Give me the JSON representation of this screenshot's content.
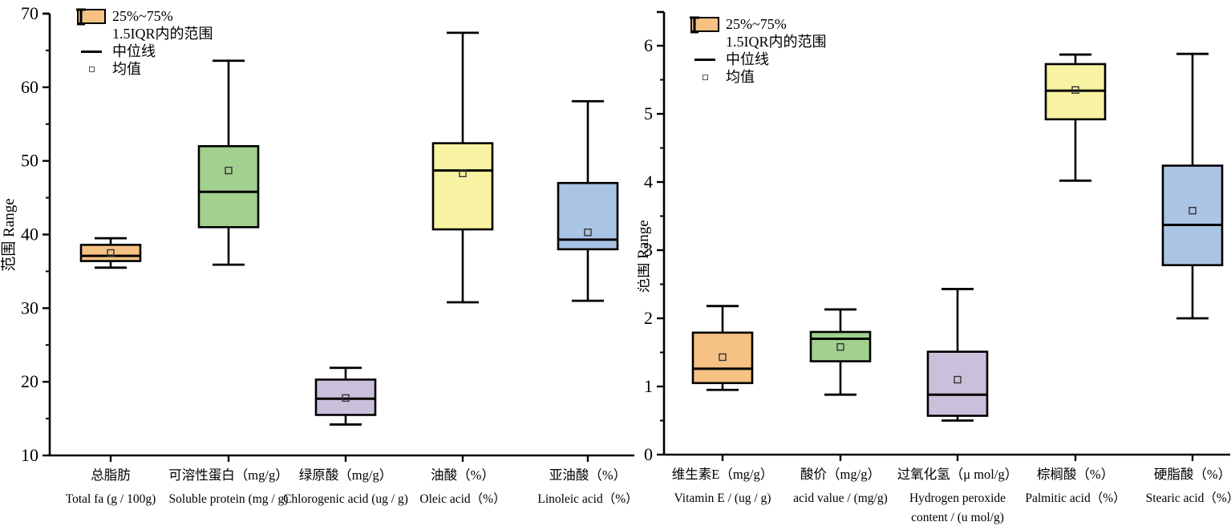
{
  "legend": {
    "iqr_box": "25%~75%",
    "whisker_range": "1.5IQR内的范围",
    "median_line": "中位线",
    "mean_marker": "均值"
  },
  "colors": {
    "background": "#ffffff",
    "axis": "#000000",
    "box_fills": [
      "#F5C284",
      "#A2D08F",
      "#CBC0DC",
      "#F8F3A2",
      "#AAC4E5"
    ]
  },
  "chart_data": [
    {
      "type": "box",
      "title": "",
      "xlabel": "",
      "ylabel": "范围 Range",
      "ylim": [
        10,
        70
      ],
      "yticks": [
        10,
        20,
        30,
        40,
        50,
        60,
        70
      ],
      "yminor_step": 5,
      "grid": false,
      "legend_position": "top-left",
      "categories": [
        {
          "zh": "总脂肪",
          "en": "Total fa (g / 100g)"
        },
        {
          "zh": "可溶性蛋白（mg/g）",
          "en": "Soluble protein (mg / g)"
        },
        {
          "zh": "绿原酸（mg/g）",
          "en": "Chlorogenic acid (ug / g)"
        },
        {
          "zh": "油酸（%）",
          "en": "Oleic acid（%）"
        },
        {
          "zh": "亚油酸（%）",
          "en": "Linoleic acid（%）"
        }
      ],
      "series": [
        {
          "name": "总脂肪 Total fat",
          "low": 35.5,
          "q1": 36.4,
          "median": 37.1,
          "mean": 37.5,
          "q3": 38.6,
          "high": 39.5
        },
        {
          "name": "可溶性蛋白 Soluble protein",
          "low": 35.9,
          "q1": 41.0,
          "median": 45.8,
          "mean": 48.7,
          "q3": 52.0,
          "high": 63.6
        },
        {
          "name": "绿原酸 Chlorogenic acid",
          "low": 14.2,
          "q1": 15.5,
          "median": 17.7,
          "mean": 17.8,
          "q3": 20.3,
          "high": 21.9
        },
        {
          "name": "油酸 Oleic acid",
          "low": 30.8,
          "q1": 40.7,
          "median": 48.7,
          "mean": 48.3,
          "q3": 52.4,
          "high": 67.4
        },
        {
          "name": "亚油酸 Linoleic acid",
          "low": 31.0,
          "q1": 38.0,
          "median": 39.3,
          "mean": 40.3,
          "q3": 47.0,
          "high": 58.1
        }
      ]
    },
    {
      "type": "box",
      "title": "",
      "xlabel": "",
      "ylabel": "范围 Range",
      "ylim": [
        0,
        6
      ],
      "yticks": [
        0,
        1,
        2,
        3,
        4,
        5,
        6
      ],
      "yminor_step": 0.5,
      "grid": false,
      "legend_position": "top-left",
      "categories": [
        {
          "zh": "维生素E（mg/g）",
          "en": "Vitamin E / (ug / g)"
        },
        {
          "zh": "酸价（mg/g）",
          "en": "acid value / (mg/g)"
        },
        {
          "zh": "过氧化氢（μ mol/g）",
          "en": "Hydrogen peroxide",
          "en2": "content / (u mol/g)"
        },
        {
          "zh": "棕榈酸（%）",
          "en": "Palmitic acid（%）"
        },
        {
          "zh": "硬脂酸（%）",
          "en": "Stearic acid（%）"
        }
      ],
      "series": [
        {
          "name": "维生素E Vitamin E",
          "low": 0.95,
          "q1": 1.05,
          "median": 1.26,
          "mean": 1.43,
          "q3": 1.79,
          "high": 2.18
        },
        {
          "name": "酸价 acid value",
          "low": 0.88,
          "q1": 1.37,
          "median": 1.7,
          "mean": 1.58,
          "q3": 1.8,
          "high": 2.13
        },
        {
          "name": "过氧化氢 Hydrogen peroxide",
          "low": 0.5,
          "q1": 0.57,
          "median": 0.88,
          "mean": 1.1,
          "q3": 1.51,
          "high": 2.43
        },
        {
          "name": "棕榈酸 Palmitic acid",
          "low": 4.02,
          "q1": 4.92,
          "median": 5.34,
          "mean": 5.35,
          "q3": 5.73,
          "high": 5.87
        },
        {
          "name": "硬脂酸 Stearic acid",
          "low": 2.0,
          "q1": 2.78,
          "median": 3.37,
          "mean": 3.58,
          "q3": 4.24,
          "high": 5.88
        }
      ]
    }
  ]
}
